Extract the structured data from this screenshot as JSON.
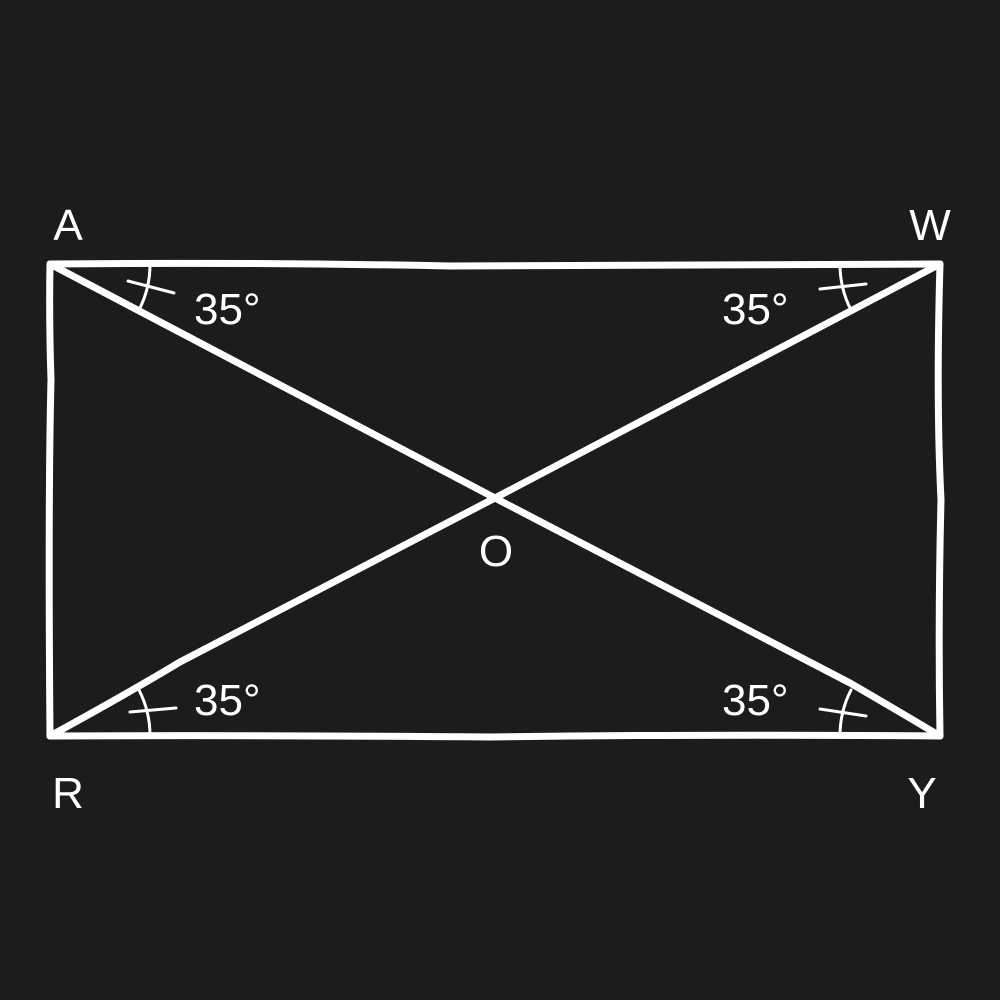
{
  "vertices": {
    "top_left": "A",
    "top_right": "W",
    "bottom_left": "R",
    "bottom_right": "Y",
    "center": "O"
  },
  "angles": {
    "top_left": "35°",
    "top_right": "35°",
    "bottom_left": "35°",
    "bottom_right": "35°"
  },
  "colors": {
    "background": "#1c1c1c",
    "ink": "#ffffff"
  }
}
